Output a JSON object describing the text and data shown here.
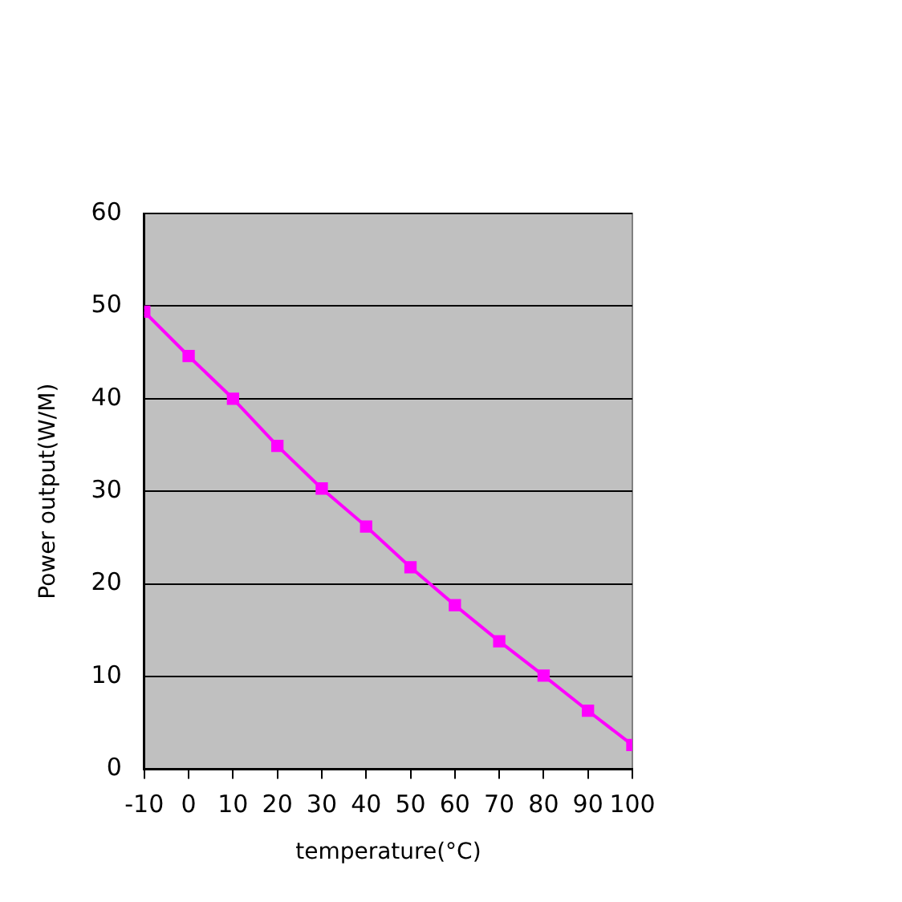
{
  "chart_data": {
    "type": "line",
    "xlabel": "temperature(°C)",
    "ylabel": "Power output(W/M)",
    "x": [
      -10,
      0,
      10,
      20,
      30,
      40,
      50,
      60,
      70,
      80,
      90,
      100
    ],
    "series": [
      {
        "color": "#ff00ff",
        "values": [
          49.4,
          44.6,
          40.0,
          34.9,
          30.3,
          26.2,
          21.8,
          17.7,
          13.8,
          10.1,
          6.3,
          2.6
        ]
      }
    ],
    "xlim": [
      -10,
      100
    ],
    "xticks": [
      -10,
      0,
      10,
      20,
      30,
      40,
      50,
      60,
      70,
      80,
      90,
      100
    ],
    "ylim": [
      0,
      60
    ],
    "yticks": [
      0,
      10,
      20,
      30,
      40,
      50,
      60
    ],
    "grid": "y",
    "legend": false,
    "marker": "square",
    "line_style": "solid"
  }
}
